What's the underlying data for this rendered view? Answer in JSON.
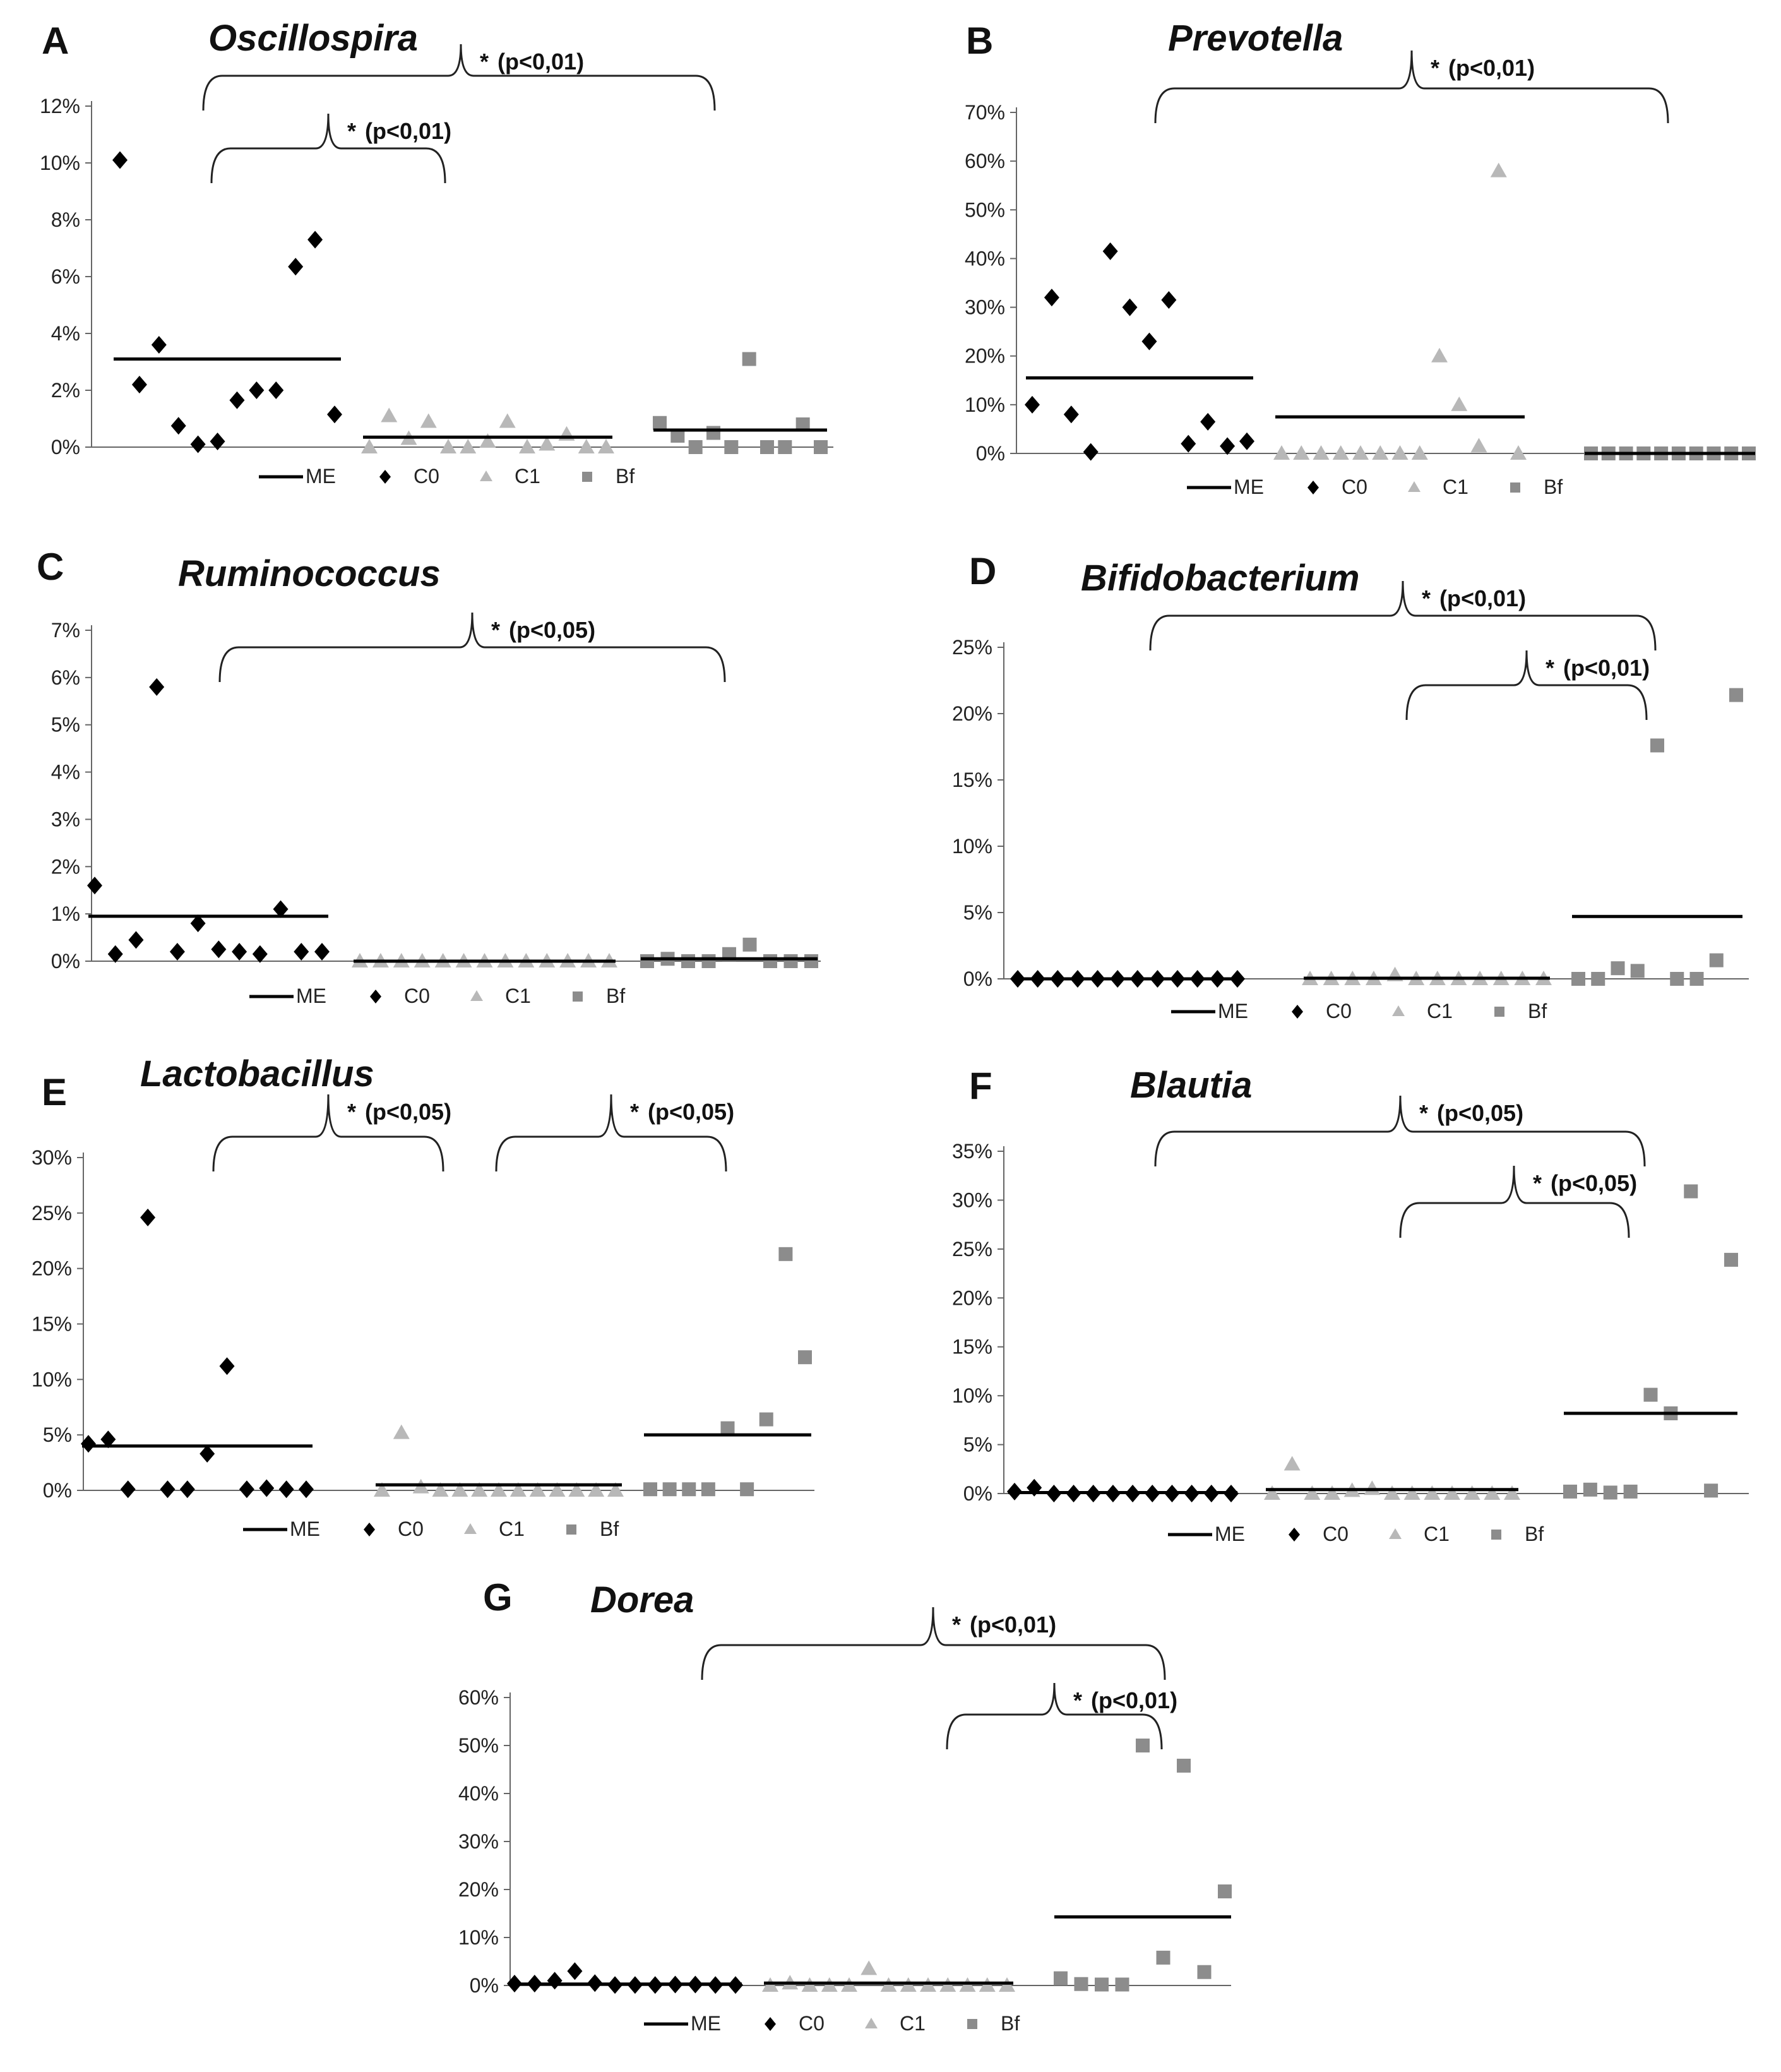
{
  "figure": {
    "panel_letters": [
      "A",
      "B",
      "C",
      "D",
      "E",
      "F",
      "G"
    ]
  },
  "colors": {
    "CO": "#000000",
    "C1": "#b8b8b8",
    "Bf": "#8c8c8c",
    "ME": "#000000",
    "axis": "#666666",
    "bracket": "#222222"
  },
  "legend": {
    "ME": "ME",
    "CO": "C0",
    "C1": "C1",
    "Bf": "Bf"
  },
  "chart_data": [
    {
      "panel": "A",
      "title": "Oscillospira",
      "type": "scatter",
      "ylabel": "",
      "ylim": [
        0,
        12
      ],
      "yticks": [
        0,
        2,
        4,
        6,
        8,
        10,
        12
      ],
      "tick_labels": [
        "0%",
        "2%",
        "4%",
        "6%",
        "8%",
        "10%",
        "12%"
      ],
      "series": [
        {
          "name": "C0",
          "values": [
            10.1,
            2.2,
            3.6,
            0.75,
            0.1,
            0.2,
            1.65,
            2.0,
            2.0,
            6.35,
            7.3,
            1.15
          ],
          "median_line": 3.1
        },
        {
          "name": "C1",
          "values": [
            0.0,
            1.1,
            0.3,
            0.9,
            0.0,
            0.0,
            0.2,
            0.9,
            0.0,
            0.1,
            0.45,
            0.0,
            0.0
          ],
          "median_line": 0.35
        },
        {
          "name": "Bf",
          "values": [
            0.85,
            0.4,
            0.0,
            0.5,
            0.0,
            3.1,
            0.0,
            0.0,
            0.8,
            0.0
          ],
          "median_line": 0.6
        }
      ],
      "significance": [
        {
          "from": "C0",
          "to": "Bf",
          "text": "(p<0,01)"
        },
        {
          "from": "C0",
          "to": "C1",
          "text": "(p<0,01)"
        }
      ]
    },
    {
      "panel": "B",
      "title": "Prevotella",
      "type": "scatter",
      "ylabel": "",
      "ylim": [
        0,
        70
      ],
      "yticks": [
        0,
        10,
        20,
        30,
        40,
        50,
        60,
        70
      ],
      "tick_labels": [
        "0%",
        "10%",
        "20%",
        "30%",
        "40%",
        "50%",
        "60%",
        "70%"
      ],
      "series": [
        {
          "name": "C0",
          "values": [
            10.0,
            32.0,
            8.0,
            0.3,
            41.5,
            30.0,
            23.0,
            31.5,
            2.0,
            6.5,
            1.5,
            2.5
          ],
          "median_line": 15.5
        },
        {
          "name": "C1",
          "values": [
            0,
            0,
            0,
            0,
            0,
            0,
            0,
            0,
            20.0,
            10.0,
            1.5,
            58.0,
            0
          ],
          "median_line": 7.5
        },
        {
          "name": "Bf",
          "values": [
            0,
            0,
            0,
            0,
            0,
            0,
            0,
            0,
            0,
            0
          ],
          "median_line": 0
        }
      ],
      "significance": [
        {
          "from": "C0",
          "to": "Bf",
          "text": "(p<0,01)"
        }
      ]
    },
    {
      "panel": "C",
      "title": "Ruminococcus",
      "type": "scatter",
      "ylabel": "",
      "ylim": [
        0,
        7
      ],
      "yticks": [
        0,
        1,
        2,
        3,
        4,
        5,
        6,
        7
      ],
      "tick_labels": [
        "0%",
        "1%",
        "2%",
        "3%",
        "4%",
        "5%",
        "6%",
        "7%"
      ],
      "series": [
        {
          "name": "C0",
          "values": [
            1.6,
            0.15,
            0.45,
            5.8,
            0.2,
            0.8,
            0.25,
            0.2,
            0.15,
            1.1,
            0.2,
            0.2
          ],
          "median_line": 0.95
        },
        {
          "name": "C1",
          "values": [
            0,
            0,
            0,
            0,
            0,
            0,
            0,
            0,
            0,
            0,
            0,
            0,
            0
          ],
          "median_line": 0.0
        },
        {
          "name": "Bf",
          "values": [
            0.0,
            0.05,
            0.0,
            0.0,
            0.15,
            0.35,
            0.0,
            0.0,
            0.0
          ],
          "median_line": 0.05
        }
      ],
      "significance": [
        {
          "from": "C0",
          "to": "Bf",
          "text": "(p<0,05)"
        }
      ]
    },
    {
      "panel": "D",
      "title": "Bifidobacterium",
      "type": "scatter",
      "ylabel": "",
      "ylim": [
        0,
        25
      ],
      "yticks": [
        0,
        5,
        10,
        15,
        20,
        25
      ],
      "tick_labels": [
        "0%",
        "5%",
        "10%",
        "15%",
        "20%",
        "25%"
      ],
      "series": [
        {
          "name": "C0",
          "values": [
            0,
            0,
            0,
            0,
            0,
            0,
            0,
            0,
            0,
            0,
            0,
            0
          ],
          "median_line": 0
        },
        {
          "name": "C1",
          "values": [
            0,
            0,
            0,
            0,
            0.3,
            0,
            0,
            0,
            0,
            0,
            0,
            0
          ],
          "median_line": 0.05
        },
        {
          "name": "Bf",
          "values": [
            0.0,
            0.0,
            0.8,
            0.6,
            17.6,
            0.0,
            0.0,
            1.4,
            21.4
          ],
          "median_line": 4.7
        }
      ],
      "significance": [
        {
          "from": "C0",
          "to": "Bf",
          "text": "(p<0,01)"
        },
        {
          "from": "C1",
          "to": "Bf",
          "text": "(p<0,01)"
        }
      ]
    },
    {
      "panel": "E",
      "title": "Lactobacillus",
      "type": "scatter",
      "ylabel": "",
      "ylim": [
        0,
        30
      ],
      "yticks": [
        0,
        5,
        10,
        15,
        20,
        25,
        30
      ],
      "tick_labels": [
        "0%",
        "5%",
        "10%",
        "15%",
        "20%",
        "25%",
        "30%"
      ],
      "series": [
        {
          "name": "C0",
          "values": [
            4.2,
            4.6,
            0.1,
            24.6,
            0.1,
            0.1,
            3.3,
            11.2,
            0.1,
            0.2,
            0.1,
            0.1
          ],
          "median_line": 4.0
        },
        {
          "name": "C1",
          "values": [
            0,
            5.2,
            0.3,
            0,
            0,
            0,
            0,
            0,
            0,
            0,
            0,
            0,
            0
          ],
          "median_line": 0.5
        },
        {
          "name": "Bf",
          "values": [
            0.1,
            0.1,
            0.1,
            0.1,
            5.6,
            0.1,
            6.4,
            21.3,
            12.0
          ],
          "median_line": 5.0
        }
      ],
      "significance": [
        {
          "from": "C0",
          "to": "C1",
          "text": "(p<0,05)"
        },
        {
          "from": "C1",
          "to": "Bf",
          "text": "(p<0,05)"
        }
      ]
    },
    {
      "panel": "F",
      "title": "Blautia",
      "type": "scatter",
      "ylabel": "",
      "ylim": [
        0,
        35
      ],
      "yticks": [
        0,
        5,
        10,
        15,
        20,
        25,
        30,
        35
      ],
      "tick_labels": [
        "0%",
        "5%",
        "10%",
        "15%",
        "20%",
        "25%",
        "30%",
        "35%"
      ],
      "series": [
        {
          "name": "C0",
          "values": [
            0.2,
            0.6,
            0,
            0,
            0,
            0,
            0,
            0,
            0,
            0,
            0,
            0
          ],
          "median_line": 0.1
        },
        {
          "name": "C1",
          "values": [
            0,
            3.0,
            0,
            0,
            0.3,
            0.5,
            0,
            0,
            0,
            0,
            0,
            0,
            0
          ],
          "median_line": 0.4
        },
        {
          "name": "Bf",
          "values": [
            0.2,
            0.4,
            0.1,
            0.2,
            10.1,
            8.2,
            30.9,
            0.3,
            23.9
          ],
          "median_line": 8.2
        }
      ],
      "significance": [
        {
          "from": "C0",
          "to": "Bf",
          "text": "(p<0,05)"
        },
        {
          "from": "C1",
          "to": "Bf",
          "text": "(p<0,05)"
        }
      ]
    },
    {
      "panel": "G",
      "title": "Dorea",
      "type": "scatter",
      "ylabel": "",
      "ylim": [
        0,
        60
      ],
      "yticks": [
        0,
        10,
        20,
        30,
        40,
        50,
        60
      ],
      "tick_labels": [
        "0%",
        "10%",
        "20%",
        "30%",
        "40%",
        "50%",
        "60%"
      ],
      "series": [
        {
          "name": "C0",
          "values": [
            0.4,
            0.4,
            1.0,
            3.0,
            0.5,
            0.1,
            0.1,
            0.1,
            0.2,
            0.2,
            0.1,
            0.1
          ],
          "median_line": 0.3
        },
        {
          "name": "C1",
          "values": [
            0,
            0.5,
            0,
            0,
            0,
            3.5,
            0,
            0,
            0,
            0,
            0,
            0,
            0
          ],
          "median_line": 0.5
        },
        {
          "name": "Bf",
          "values": [
            1.5,
            0.3,
            0.2,
            0.2,
            50.0,
            5.8,
            45.8,
            2.8,
            19.6
          ],
          "median_line": 14.3
        }
      ],
      "significance": [
        {
          "from": "C0",
          "to": "Bf",
          "text": "(p<0,01)"
        },
        {
          "from": "C1",
          "to": "Bf",
          "text": "(p<0,01)"
        }
      ]
    }
  ]
}
